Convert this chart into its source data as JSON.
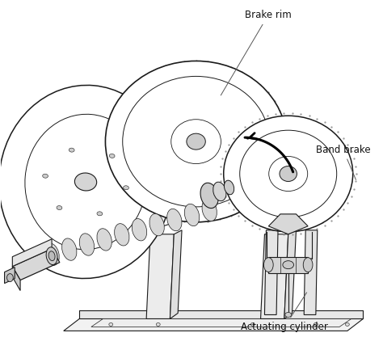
{
  "fig_width": 4.74,
  "fig_height": 4.38,
  "dpi": 100,
  "background_color": "#ffffff",
  "label_fontsize": 8.5,
  "label_color": "#111111",
  "line_color": "#1a1a1a",
  "labels": {
    "brake_rim": "Brake rim",
    "band_brake": "Band brake",
    "actuating_cylinder": "Actuating cylinder"
  }
}
